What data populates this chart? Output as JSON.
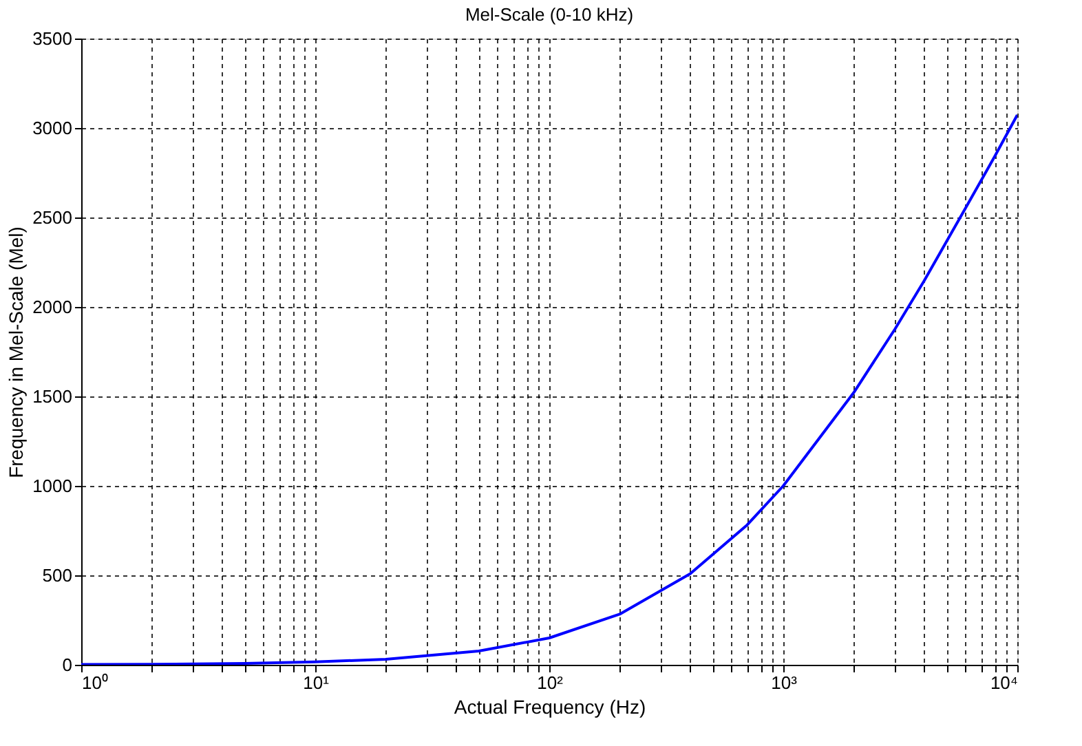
{
  "chart_data": {
    "type": "line",
    "title": "Mel-Scale (0-10 kHz)",
    "xlabel": "Actual Frequency (Hz)",
    "ylabel": "Frequency in Mel-Scale (Mel)",
    "log": "x",
    "grid": true,
    "marker": "none",
    "line_style": "solid",
    "x": [
      1,
      2,
      5,
      10,
      20,
      50,
      100,
      200,
      400,
      700,
      1000,
      2000,
      3000,
      4000,
      6000,
      8000,
      10000
    ],
    "series": [
      {
        "color": "#0000ff",
        "values": [
          2,
          3,
          8,
          16,
          31,
          77,
          150,
          283,
          509,
          781,
          1000,
          1521,
          1876,
          2146,
          2551,
          2840,
          3073
        ]
      }
    ],
    "xlim": [
      1,
      10000
    ],
    "xticks": [
      {
        "value": 1,
        "label": "10⁰"
      },
      {
        "value": 2,
        "label": null
      },
      {
        "value": 3,
        "label": null
      },
      {
        "value": 4,
        "label": null
      },
      {
        "value": 5,
        "label": null
      },
      {
        "value": 6,
        "label": null
      },
      {
        "value": 7,
        "label": null
      },
      {
        "value": 8,
        "label": null
      },
      {
        "value": 9,
        "label": null
      },
      {
        "value": 10,
        "label": "10¹"
      },
      {
        "value": 20,
        "label": null
      },
      {
        "value": 30,
        "label": null
      },
      {
        "value": 40,
        "label": null
      },
      {
        "value": 50,
        "label": null
      },
      {
        "value": 60,
        "label": null
      },
      {
        "value": 70,
        "label": null
      },
      {
        "value": 80,
        "label": null
      },
      {
        "value": 90,
        "label": null
      },
      {
        "value": 100,
        "label": "10²"
      },
      {
        "value": 200,
        "label": null
      },
      {
        "value": 300,
        "label": null
      },
      {
        "value": 400,
        "label": null
      },
      {
        "value": 500,
        "label": null
      },
      {
        "value": 600,
        "label": null
      },
      {
        "value": 700,
        "label": null
      },
      {
        "value": 800,
        "label": null
      },
      {
        "value": 900,
        "label": null
      },
      {
        "value": 1000,
        "label": "10³"
      },
      {
        "value": 2000,
        "label": null
      },
      {
        "value": 3000,
        "label": null
      },
      {
        "value": 4000,
        "label": null
      },
      {
        "value": 5000,
        "label": null
      },
      {
        "value": 6000,
        "label": null
      },
      {
        "value": 7000,
        "label": null
      },
      {
        "value": 8000,
        "label": null
      },
      {
        "value": 9000,
        "label": null
      },
      {
        "value": 10000,
        "label": "10⁴"
      }
    ],
    "ylim": [
      0,
      3500
    ],
    "yticks": [
      0,
      500,
      1000,
      1500,
      2000,
      2500,
      3000,
      3500
    ]
  }
}
